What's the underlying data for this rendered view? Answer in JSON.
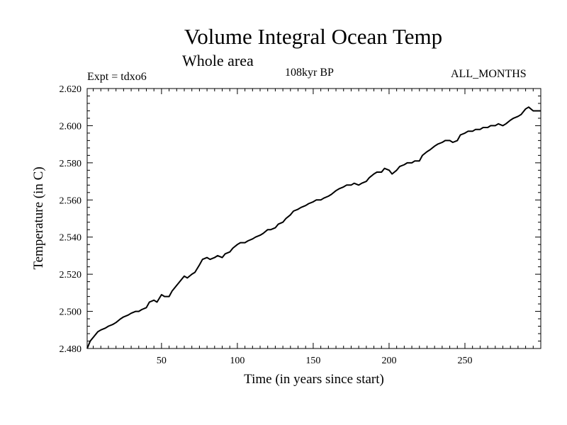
{
  "header": {
    "title": "Volume Integral Ocean Temp",
    "subtitle": "Whole area",
    "expt": "Expt = tdxo6",
    "period": "108kyr BP",
    "months": "ALL_MONTHS"
  },
  "chart_data": {
    "type": "line",
    "title": "Volume Integral Ocean Temp",
    "subtitle": "Whole area",
    "xlabel": "Time (in years since start)",
    "ylabel": "Temperature (in C)",
    "xlim": [
      1,
      300
    ],
    "ylim": [
      2.48,
      2.62
    ],
    "x_ticks": [
      50,
      100,
      150,
      200,
      250
    ],
    "x_tick_labels": [
      "50",
      "100",
      "150",
      "200",
      "250"
    ],
    "y_ticks": [
      2.48,
      2.5,
      2.52,
      2.54,
      2.56,
      2.58,
      2.6,
      2.62
    ],
    "y_tick_labels": [
      "2.480",
      "2.500",
      "2.520",
      "2.540",
      "2.560",
      "2.580",
      "2.600",
      "2.620"
    ],
    "grid": false,
    "line_color": "#000000",
    "series": [
      {
        "x": [
          1,
          3,
          5,
          8,
          10,
          13,
          15,
          18,
          20,
          23,
          25,
          28,
          30,
          33,
          35,
          37,
          40,
          42,
          45,
          47,
          50,
          52,
          55,
          57,
          60,
          62,
          65,
          67,
          70,
          72,
          75,
          77,
          80,
          82,
          85,
          87,
          90,
          92,
          95,
          97,
          100,
          102,
          105,
          107,
          110,
          112,
          115,
          117,
          120,
          122,
          125,
          127,
          130,
          132,
          135,
          137,
          140,
          142,
          145,
          147,
          150,
          152,
          155,
          157,
          160,
          162,
          165,
          167,
          170,
          172,
          175,
          177,
          180,
          182,
          185,
          187,
          190,
          192,
          195,
          197,
          200,
          202,
          205,
          207,
          210,
          212,
          215,
          217,
          220,
          222,
          225,
          227,
          230,
          232,
          235,
          237,
          240,
          242,
          245,
          247,
          250,
          252,
          255,
          257,
          260,
          262,
          265,
          267,
          270,
          272,
          275,
          277,
          280,
          282,
          285,
          287,
          290,
          292,
          295,
          300
        ],
        "y": [
          2.48,
          2.484,
          2.486,
          2.489,
          2.49,
          2.491,
          2.492,
          2.493,
          2.494,
          2.496,
          2.497,
          2.498,
          2.499,
          2.5,
          2.5,
          2.501,
          2.502,
          2.505,
          2.506,
          2.505,
          2.509,
          2.508,
          2.508,
          2.511,
          2.514,
          2.516,
          2.519,
          2.518,
          2.52,
          2.521,
          2.525,
          2.528,
          2.529,
          2.528,
          2.529,
          2.53,
          2.529,
          2.531,
          2.532,
          2.534,
          2.536,
          2.537,
          2.537,
          2.538,
          2.539,
          2.54,
          2.541,
          2.542,
          2.544,
          2.544,
          2.545,
          2.547,
          2.548,
          2.55,
          2.552,
          2.554,
          2.555,
          2.556,
          2.557,
          2.558,
          2.559,
          2.56,
          2.56,
          2.561,
          2.562,
          2.563,
          2.565,
          2.566,
          2.567,
          2.568,
          2.568,
          2.569,
          2.568,
          2.569,
          2.57,
          2.572,
          2.574,
          2.575,
          2.575,
          2.577,
          2.576,
          2.574,
          2.576,
          2.578,
          2.579,
          2.58,
          2.58,
          2.581,
          2.581,
          2.584,
          2.586,
          2.587,
          2.589,
          2.59,
          2.591,
          2.592,
          2.592,
          2.591,
          2.592,
          2.595,
          2.596,
          2.597,
          2.597,
          2.598,
          2.598,
          2.599,
          2.599,
          2.6,
          2.6,
          2.601,
          2.6,
          2.601,
          2.603,
          2.604,
          2.605,
          2.606,
          2.609,
          2.61,
          2.608,
          2.608
        ]
      }
    ]
  }
}
